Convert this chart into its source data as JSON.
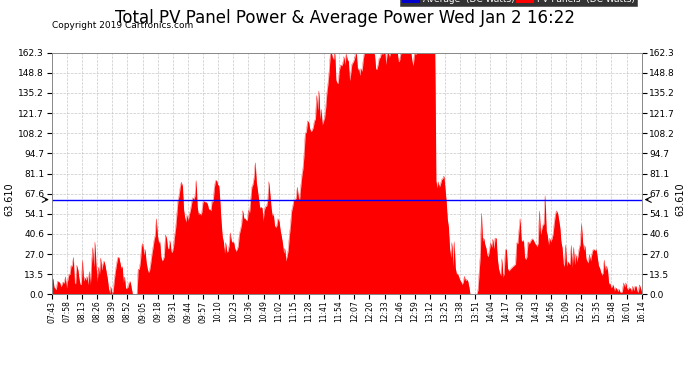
{
  "title": "Total PV Panel Power & Average Power Wed Jan 2 16:22",
  "copyright": "Copyright 2019 Cartronics.com",
  "avg_value": 63.61,
  "avg_label": "63.610",
  "y_ticks": [
    0.0,
    13.5,
    27.0,
    40.6,
    54.1,
    67.6,
    81.1,
    94.7,
    108.2,
    121.7,
    135.2,
    148.8,
    162.3
  ],
  "x_labels": [
    "07:43",
    "07:58",
    "08:13",
    "08:26",
    "08:39",
    "08:52",
    "09:05",
    "09:18",
    "09:31",
    "09:44",
    "09:57",
    "10:10",
    "10:23",
    "10:36",
    "10:49",
    "11:02",
    "11:15",
    "11:28",
    "11:41",
    "11:54",
    "12:07",
    "12:20",
    "12:33",
    "12:46",
    "12:59",
    "13:12",
    "13:25",
    "13:38",
    "13:51",
    "14:04",
    "14:17",
    "14:30",
    "14:43",
    "14:56",
    "15:09",
    "15:22",
    "15:35",
    "15:48",
    "16:01",
    "16:14"
  ],
  "bar_color": "#FF0000",
  "avg_line_color": "#0000FF",
  "background_color": "#FFFFFF",
  "plot_bg_color": "#FFFFFF",
  "grid_color": "#BBBBBB",
  "title_fontsize": 12,
  "legend_avg_bg": "#0000CC",
  "legend_pv_bg": "#FF0000"
}
